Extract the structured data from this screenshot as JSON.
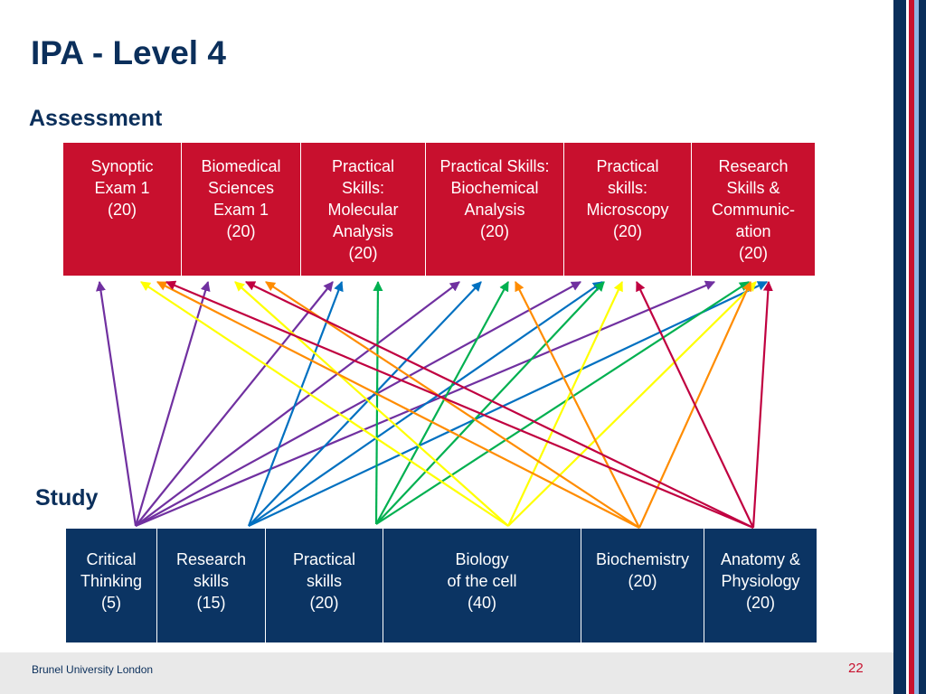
{
  "slide": {
    "title": "IPA - Level 4",
    "page_number": "22",
    "footer": "Brunel University London"
  },
  "assessment": {
    "heading": "Assessment",
    "color": "#c8102e",
    "items": [
      {
        "id": "synoptic",
        "label": "Synoptic\nExam 1\n(20)"
      },
      {
        "id": "biomedical",
        "label": "Biomedical\nSciences\nExam 1\n    (20)"
      },
      {
        "id": "molecular",
        "label": "Practical\nSkills:\nMolecular\nAnalysis\n(20)"
      },
      {
        "id": "biochemical",
        "label": "Practical Skills:\nBiochemical\nAnalysis\n(20)"
      },
      {
        "id": "microscopy",
        "label": "Practical\nskills:\nMicroscopy\n(20)"
      },
      {
        "id": "research_comm",
        "label": "Research\nSkills &\nCommunic-\nation\n(20)"
      }
    ]
  },
  "study": {
    "heading": "Study",
    "color": "#0b3463",
    "items": [
      {
        "id": "critical",
        "label": "Critical\nThinking\n(5)"
      },
      {
        "id": "research",
        "label": "Research\nskills\n(15)"
      },
      {
        "id": "practical",
        "label": "Practical\nskills\n(20)"
      },
      {
        "id": "biology",
        "label": "Biology\nof the cell\n(40)"
      },
      {
        "id": "biochemistry",
        "label": "Biochemistry\n(20)"
      },
      {
        "id": "anatomy",
        "label": "Anatomy  &\nPhysiology\n(20)"
      }
    ]
  },
  "links": [
    {
      "from": "critical",
      "to": "synoptic",
      "color": "#7030a0"
    },
    {
      "from": "critical",
      "to": "biomedical",
      "color": "#7030a0"
    },
    {
      "from": "critical",
      "to": "molecular",
      "color": "#7030a0"
    },
    {
      "from": "critical",
      "to": "biochemical",
      "color": "#7030a0"
    },
    {
      "from": "critical",
      "to": "microscopy",
      "color": "#7030a0"
    },
    {
      "from": "critical",
      "to": "research_comm",
      "color": "#7030a0"
    },
    {
      "from": "research",
      "to": "molecular",
      "color": "#0070c0"
    },
    {
      "from": "research",
      "to": "biochemical",
      "color": "#0070c0"
    },
    {
      "from": "research",
      "to": "microscopy",
      "color": "#0070c0"
    },
    {
      "from": "research",
      "to": "research_comm",
      "color": "#0070c0"
    },
    {
      "from": "practical",
      "to": "molecular",
      "color": "#00b050"
    },
    {
      "from": "practical",
      "to": "biochemical",
      "color": "#00b050"
    },
    {
      "from": "practical",
      "to": "microscopy",
      "color": "#00b050"
    },
    {
      "from": "practical",
      "to": "research_comm",
      "color": "#00b050"
    },
    {
      "from": "biology",
      "to": "synoptic",
      "color": "#ffff00"
    },
    {
      "from": "biology",
      "to": "biomedical",
      "color": "#ffff00"
    },
    {
      "from": "biology",
      "to": "microscopy",
      "color": "#ffff00"
    },
    {
      "from": "biology",
      "to": "research_comm",
      "color": "#ffff00"
    },
    {
      "from": "biochemistry",
      "to": "synoptic",
      "color": "#ff8c00"
    },
    {
      "from": "biochemistry",
      "to": "biomedical",
      "color": "#ff8c00"
    },
    {
      "from": "biochemistry",
      "to": "biochemical",
      "color": "#ff8c00"
    },
    {
      "from": "biochemistry",
      "to": "research_comm",
      "color": "#ff8c00"
    },
    {
      "from": "anatomy",
      "to": "synoptic",
      "color": "#c00040"
    },
    {
      "from": "anatomy",
      "to": "biomedical",
      "color": "#c00040"
    },
    {
      "from": "anatomy",
      "to": "microscopy",
      "color": "#c00040"
    },
    {
      "from": "anatomy",
      "to": "research_comm",
      "color": "#c00040"
    }
  ],
  "stripes": [
    "#0b2f5b",
    "#ffffff",
    "#c8102e",
    "#8fb4e3",
    "#0b2f5b"
  ]
}
